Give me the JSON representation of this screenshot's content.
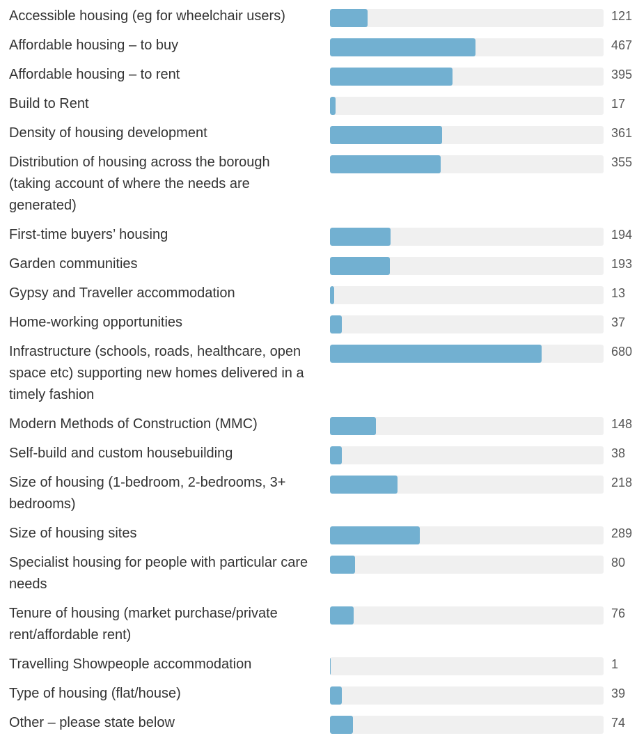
{
  "chart_data": {
    "type": "bar",
    "orientation": "horizontal",
    "color": "#72b0d1",
    "track_color": "#f0f0f0",
    "xlim": [
      0,
      880
    ],
    "categories": [
      "Accessible housing (eg for wheelchair users)",
      "Affordable housing – to buy",
      "Affordable housing – to rent",
      "Build to Rent",
      "Density of housing development",
      "Distribution of housing across the borough (taking account of where the needs are generated)",
      "First-time buyers’ housing",
      "Garden communities",
      "Gypsy and Traveller accommodation",
      "Home-working opportunities",
      "Infrastructure (schools, roads, healthcare, open space etc) supporting new homes delivered in a timely fashion",
      "Modern Methods of Construction (MMC)",
      "Self-build and custom housebuilding",
      "Size of housing (1-bedroom, 2-bedrooms, 3+ bedrooms)",
      "Size of housing sites",
      "Specialist housing for people with particular care needs",
      "Tenure of housing (market purchase/private rent/affordable rent)",
      "Travelling Showpeople accommodation",
      "Type of housing (flat/house)",
      "Other – please state below"
    ],
    "values": [
      121,
      467,
      395,
      17,
      361,
      355,
      194,
      193,
      13,
      37,
      680,
      148,
      38,
      218,
      289,
      80,
      76,
      1,
      39,
      74
    ]
  }
}
